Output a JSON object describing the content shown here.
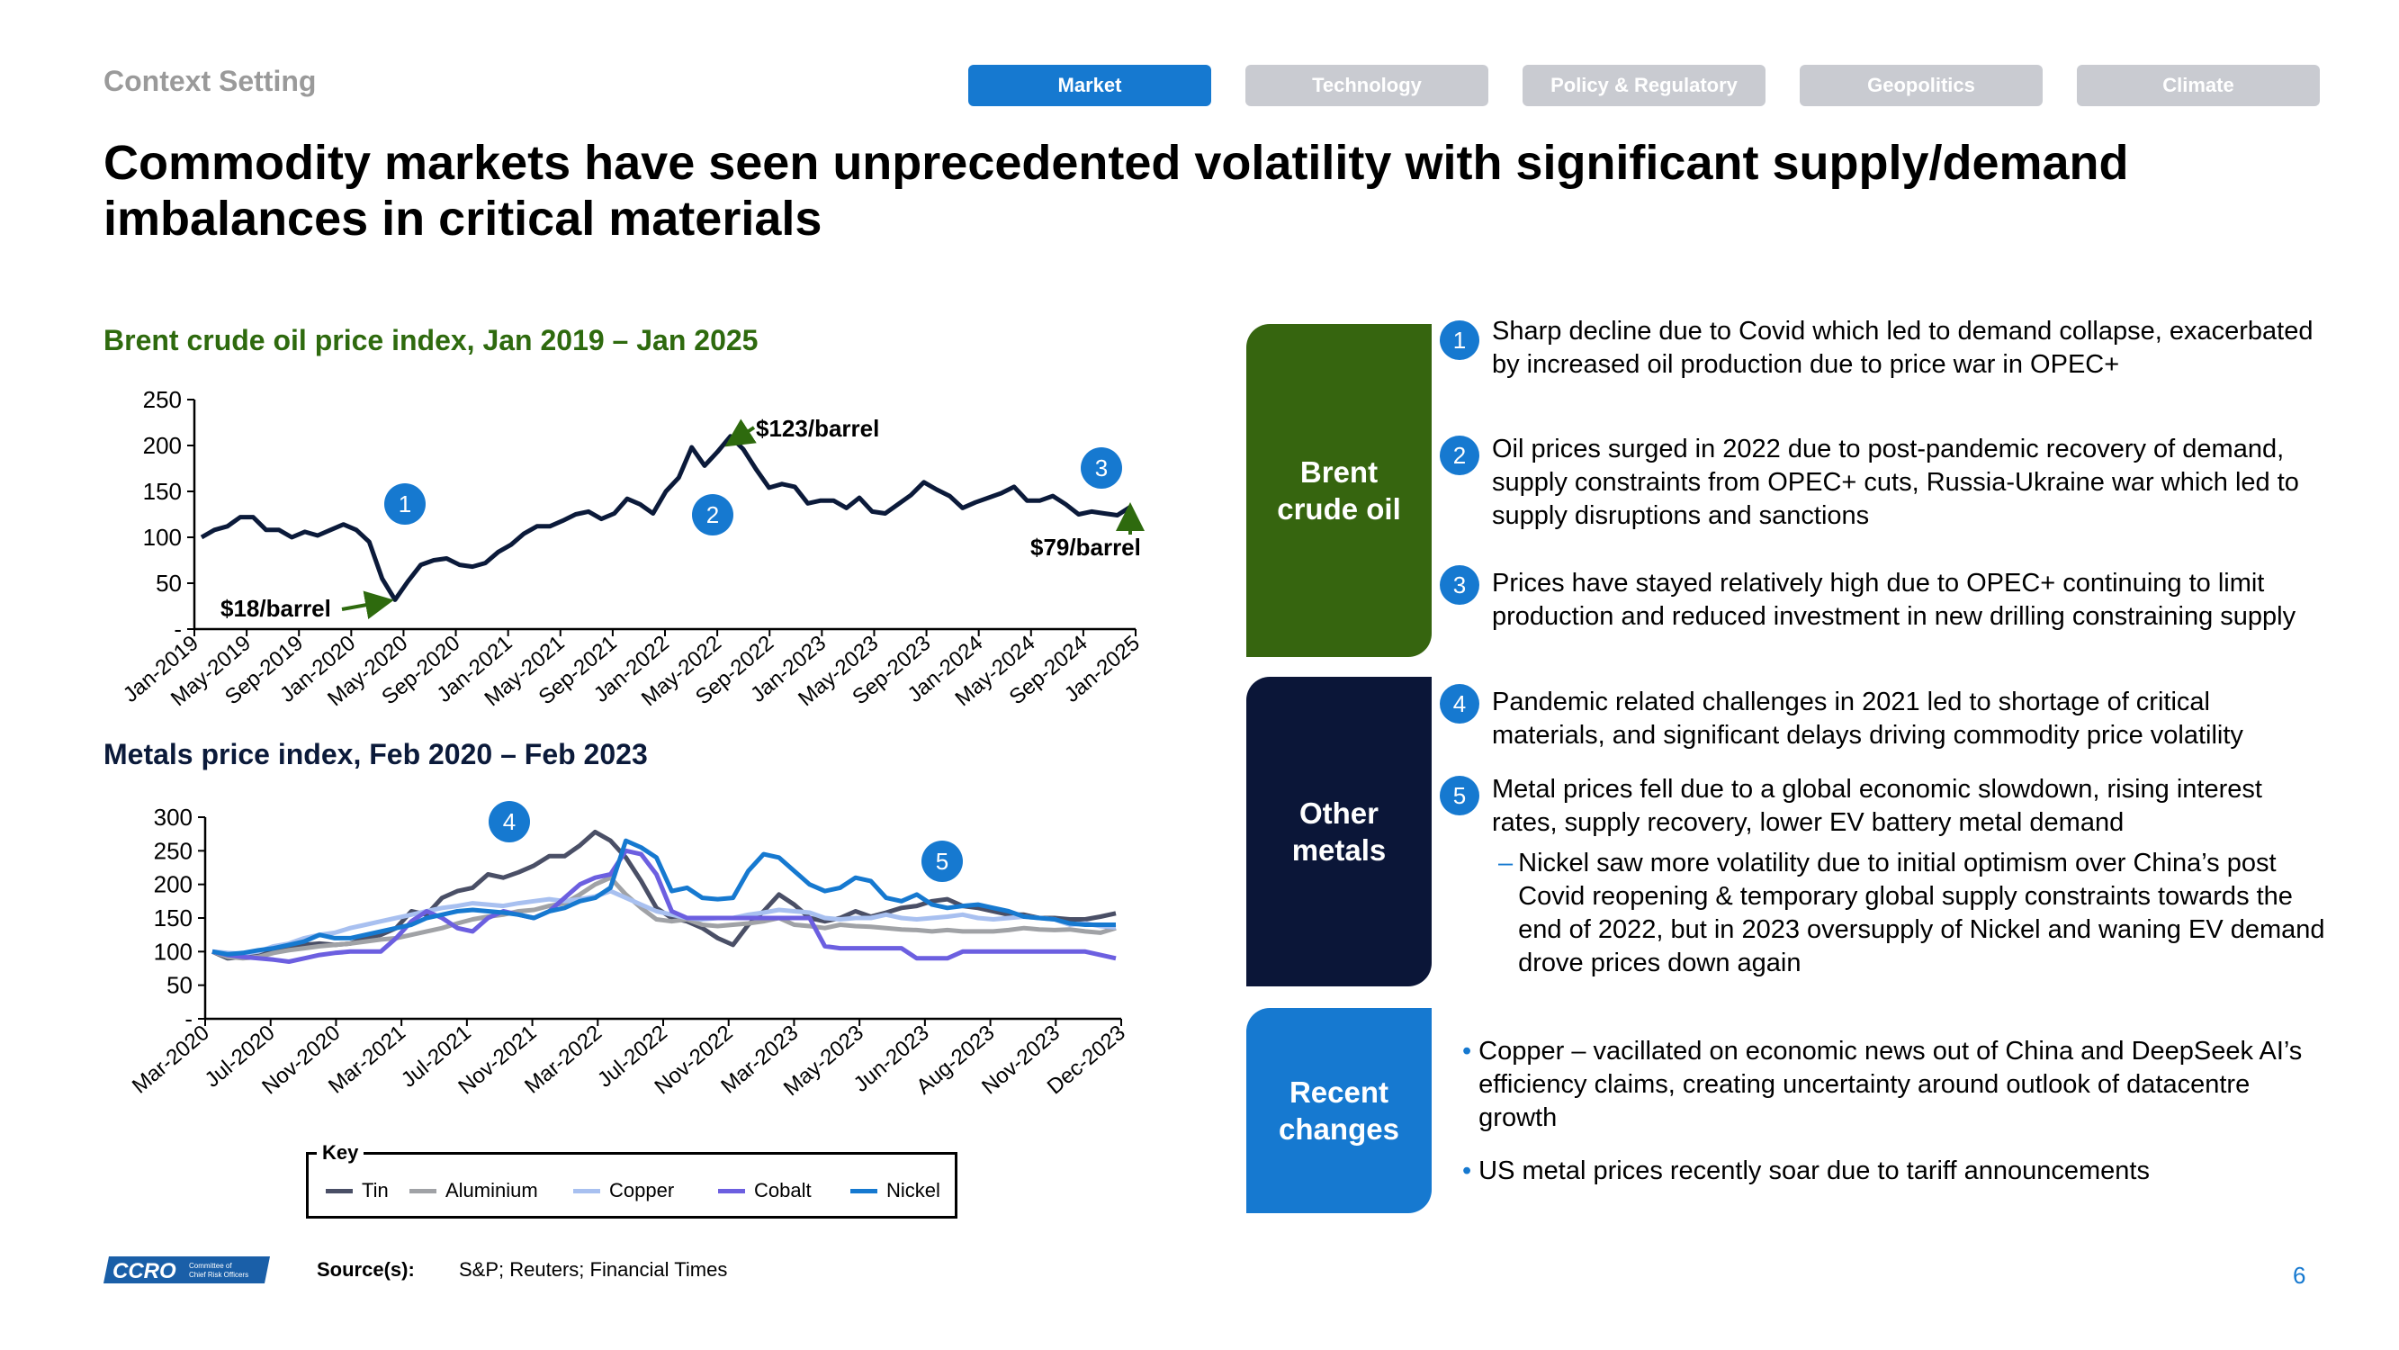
{
  "header": {
    "context": "Context Setting",
    "tabs": [
      {
        "label": "Market",
        "active": true
      },
      {
        "label": "Technology",
        "active": false
      },
      {
        "label": "Policy & Regulatory",
        "active": false
      },
      {
        "label": "Geopolitics",
        "active": false
      },
      {
        "label": "Climate",
        "active": false
      }
    ],
    "title": "Commodity markets have seen unprecedented volatility with significant supply/demand imbalances in critical materials"
  },
  "brent": {
    "title": "Brent crude oil price index, Jan 2019 – Jan 2025",
    "annot_low": "$18/barrel",
    "annot_high": "$123/barrel",
    "annot_end": "$79/barrel",
    "markers": [
      "1",
      "2",
      "3"
    ]
  },
  "metals": {
    "title": "Metals price index, Feb 2020 – Feb 2023",
    "markers": [
      "4",
      "5"
    ],
    "key_title": "Key"
  },
  "chart_data": [
    {
      "type": "line",
      "title": "Brent crude oil price index, Jan 2019 – Jan 2025",
      "xlabel": "",
      "ylabel": "",
      "ylim": [
        0,
        250
      ],
      "yticks": [
        "-",
        "50",
        "100",
        "150",
        "200",
        "250"
      ],
      "xtick_labels": [
        "Jan-2019",
        "May-2019",
        "Sep-2019",
        "Jan-2020",
        "May-2020",
        "Sep-2020",
        "Jan-2021",
        "May-2021",
        "Sep-2021",
        "Jan-2022",
        "May-2022",
        "Sep-2022",
        "Jan-2023",
        "May-2023",
        "Sep-2023",
        "Jan-2024",
        "May-2024",
        "Sep-2024",
        "Jan-2025"
      ],
      "grid": false,
      "color": "#0b1a3a",
      "series": [
        {
          "values": [
            100,
            108,
            112,
            122,
            122,
            108,
            108,
            100,
            106,
            102,
            108,
            114,
            108,
            95,
            55,
            32,
            52,
            70,
            75,
            77,
            70,
            68,
            72,
            84,
            92,
            104,
            112,
            112,
            118,
            125,
            128,
            120,
            126,
            142,
            136,
            126,
            150,
            165,
            198,
            178,
            193,
            210,
            196,
            174,
            154,
            158,
            155,
            137,
            140,
            140,
            132,
            143,
            128,
            126,
            136,
            146,
            160,
            152,
            145,
            132,
            138,
            143,
            148,
            155,
            140,
            140,
            145,
            136,
            125,
            128,
            126,
            124,
            133
          ]
        }
      ]
    },
    {
      "type": "line",
      "title": "Metals price index, Feb 2020 – Feb 2023",
      "xlabel": "",
      "ylabel": "",
      "ylim": [
        0,
        300
      ],
      "yticks": [
        "-",
        "50",
        "100",
        "150",
        "200",
        "250",
        "300"
      ],
      "xtick_labels": [
        "Mar-2020",
        "Jul-2020",
        "Nov-2020",
        "Mar-2021",
        "Jul-2021",
        "Nov-2021",
        "Mar-2022",
        "Jul-2022",
        "Nov-2022",
        "Mar-2023",
        "May-2023",
        "Jun-2023",
        "Aug-2023",
        "Nov-2023",
        "Dec-2023"
      ],
      "grid": false,
      "legend": "bottom",
      "series": [
        {
          "name": "Tin",
          "color": "#4a4f66",
          "values": [
            100,
            90,
            92,
            95,
            100,
            105,
            110,
            112,
            110,
            112,
            120,
            125,
            135,
            160,
            155,
            180,
            190,
            195,
            215,
            210,
            218,
            228,
            242,
            242,
            258,
            278,
            265,
            240,
            205,
            165,
            150,
            145,
            135,
            120,
            110,
            140,
            160,
            185,
            170,
            150,
            145,
            150,
            160,
            152,
            158,
            165,
            168,
            175,
            178,
            168,
            165,
            160,
            155,
            155,
            150,
            150,
            148,
            148,
            152,
            157
          ]
        },
        {
          "name": "Aluminium",
          "color": "#a0a2a6",
          "values": [
            100,
            92,
            90,
            92,
            98,
            102,
            105,
            108,
            110,
            112,
            115,
            118,
            120,
            125,
            130,
            135,
            142,
            148,
            152,
            155,
            160,
            162,
            168,
            172,
            185,
            200,
            210,
            185,
            165,
            148,
            145,
            148,
            140,
            138,
            140,
            142,
            145,
            150,
            140,
            138,
            135,
            140,
            138,
            137,
            135,
            133,
            132,
            130,
            132,
            130,
            130,
            130,
            132,
            135,
            133,
            132,
            133,
            130,
            128,
            135
          ]
        },
        {
          "name": "Copper",
          "color": "#a8c0f0",
          "values": [
            100,
            98,
            97,
            100,
            108,
            112,
            120,
            125,
            128,
            135,
            140,
            145,
            150,
            155,
            160,
            165,
            168,
            172,
            170,
            168,
            172,
            175,
            178,
            175,
            178,
            182,
            190,
            180,
            170,
            160,
            155,
            150,
            148,
            150,
            150,
            155,
            158,
            162,
            160,
            158,
            150,
            148,
            150,
            150,
            155,
            150,
            148,
            150,
            152,
            155,
            150,
            148,
            150,
            152,
            150,
            148,
            140,
            142,
            138,
            136
          ]
        },
        {
          "name": "Cobalt",
          "color": "#6c5fe0",
          "values": [
            100,
            95,
            92,
            90,
            88,
            85,
            90,
            95,
            98,
            100,
            100,
            100,
            120,
            145,
            160,
            150,
            135,
            130,
            150,
            160,
            155,
            150,
            160,
            180,
            200,
            210,
            215,
            250,
            245,
            215,
            160,
            150,
            150,
            150,
            150,
            150,
            150,
            150,
            150,
            150,
            108,
            105,
            105,
            105,
            105,
            105,
            90,
            90,
            90,
            100,
            100,
            100,
            100,
            100,
            100,
            100,
            100,
            100,
            95,
            90
          ]
        },
        {
          "name": "Nickel",
          "color": "#1679d0",
          "values": [
            100,
            96,
            98,
            102,
            105,
            110,
            115,
            125,
            120,
            120,
            125,
            130,
            135,
            140,
            150,
            155,
            160,
            162,
            160,
            158,
            155,
            150,
            160,
            165,
            175,
            180,
            195,
            265,
            255,
            240,
            190,
            195,
            180,
            178,
            180,
            220,
            245,
            240,
            220,
            200,
            190,
            195,
            210,
            205,
            180,
            175,
            185,
            170,
            165,
            168,
            170,
            165,
            160,
            152,
            150,
            148,
            142,
            140,
            140,
            140
          ]
        }
      ]
    }
  ],
  "panels": {
    "brent_label": "Brent crude oil",
    "metals_label": "Other metals",
    "recent_label": "Recent changes"
  },
  "bullets": {
    "b1_num": "1",
    "b1": "Sharp decline due to Covid which led to demand collapse, exacerbated by increased oil production due to price war in OPEC+",
    "b2_num": "2",
    "b2": "Oil prices surged in 2022 due to post-pandemic recovery of demand, supply constraints from OPEC+ cuts, Russia-Ukraine war which led to supply disruptions and sanctions",
    "b3_num": "3",
    "b3": "Prices have stayed relatively high due to OPEC+ continuing to limit production and reduced investment in new drilling constraining supply",
    "b4_num": "4",
    "b4": "Pandemic related challenges in 2021 led to shortage of critical materials, and significant delays driving commodity price volatility",
    "b5_num": "5",
    "b5": "Metal prices fell due to a global economic slowdown, rising interest rates, supply recovery, lower EV battery metal demand",
    "b5_sub": "Nickel saw more volatility due to initial optimism over China’s post Covid reopening & temporary global supply constraints towards the end of 2022, but in 2023 oversupply of Nickel and waning EV demand drove prices down again",
    "r1": "Copper – vacillated on economic news out of China and DeepSeek AI’s efficiency claims, creating uncertainty around outlook of datacentre growth",
    "r2": "US metal prices recently soar due to tariff announcements"
  },
  "footer": {
    "logo_text": "CCRO",
    "logo_sub": "Committee of Chief Risk Officers",
    "source_label": "Source(s):",
    "source": "S&P; Reuters; Financial Times",
    "page": "6"
  }
}
